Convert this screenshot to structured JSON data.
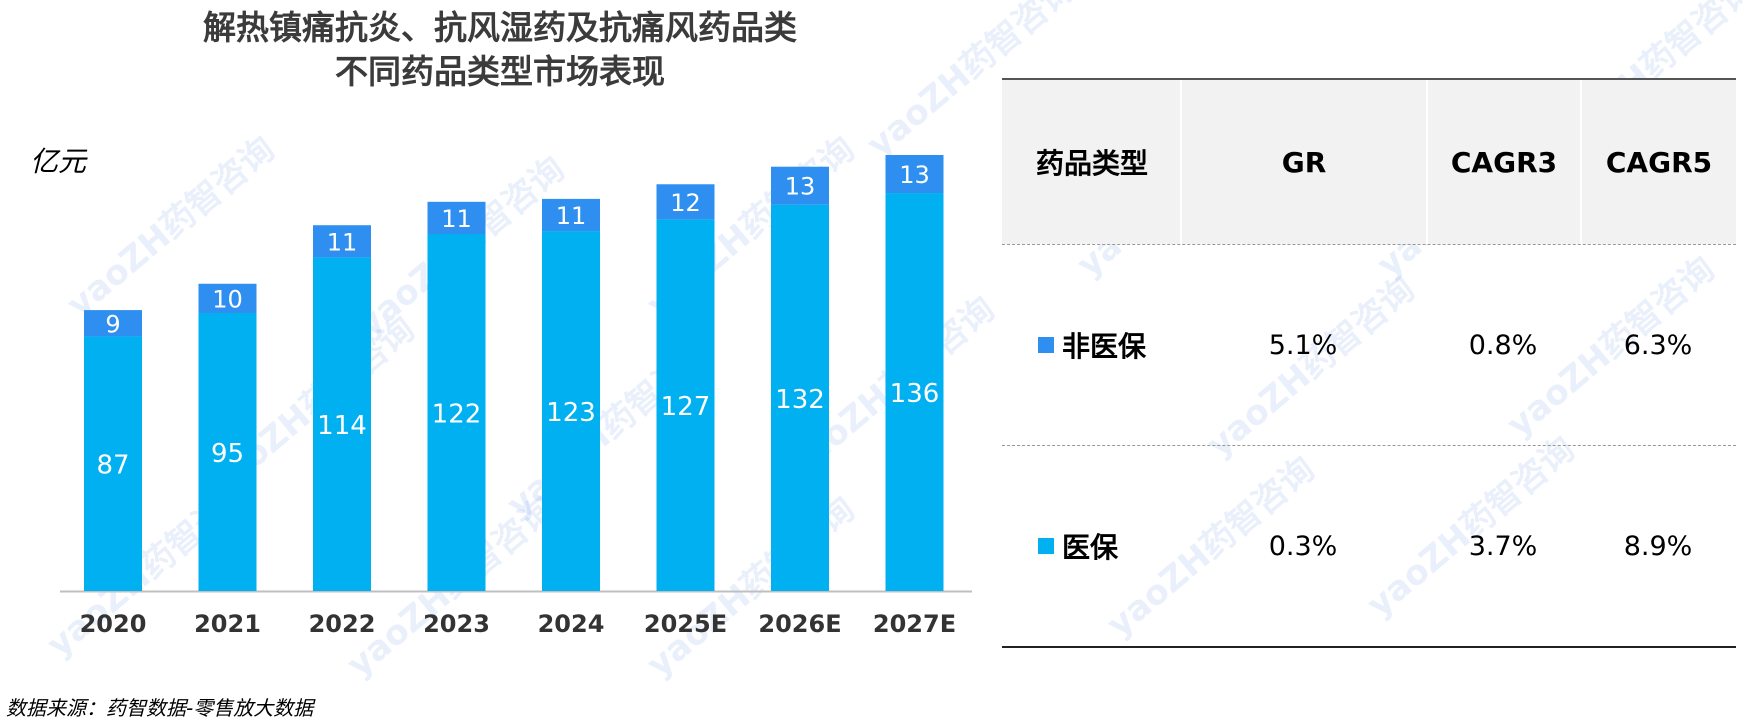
{
  "title_line1": "解热镇痛抗炎、抗风湿药及抗痛风药品类",
  "title_line2": "不同药品类型市场表现",
  "unit": "亿元",
  "source": "数据来源：药智数据-零售放大数据",
  "watermark": "yaoZH药智咨询",
  "colors": {
    "medical": "#00b0f0",
    "non_medical": "#2e8ff0"
  },
  "chart_data": {
    "type": "bar",
    "stacked": true,
    "categories": [
      "2020",
      "2021",
      "2022",
      "2023",
      "2024",
      "2025E",
      "2026E",
      "2027E"
    ],
    "series": [
      {
        "name": "医保",
        "values": [
          87,
          95,
          114,
          122,
          123,
          127,
          132,
          136
        ]
      },
      {
        "name": "非医保",
        "values": [
          9,
          10,
          11,
          11,
          11,
          12,
          13,
          13
        ]
      }
    ],
    "ylabel": "亿元",
    "ylim": [
      0,
      150
    ],
    "grid": false
  },
  "table": {
    "headers": [
      "药品类型",
      "GR",
      "CAGR3",
      "CAGR5"
    ],
    "rows": [
      {
        "label": "非医保",
        "gr": "5.1%",
        "cagr3": "0.8%",
        "cagr5": "6.3%"
      },
      {
        "label": "医保",
        "gr": "0.3%",
        "cagr3": "3.7%",
        "cagr5": "8.9%"
      }
    ]
  }
}
